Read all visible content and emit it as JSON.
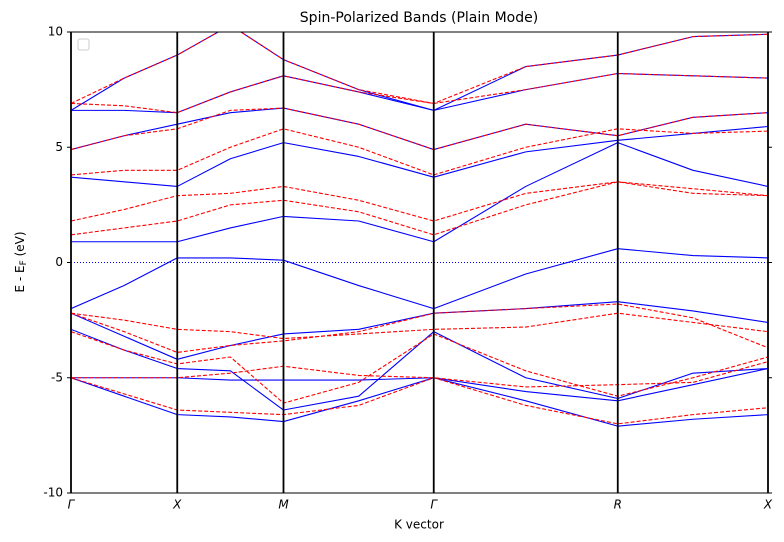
{
  "chart_data": {
    "type": "line",
    "title": "Spin-Polarized Bands (Plain Mode)",
    "xlabel": "K vector",
    "ylabel": {
      "text": "E - E",
      "subscript": "F",
      "suffix": " (eV)"
    },
    "x": [
      0,
      0.25,
      0.5,
      0.75,
      1.0,
      1.354,
      1.707,
      2.14,
      2.573,
      2.927,
      3.28
    ],
    "xlim": [
      0,
      3.28
    ],
    "xticks": [
      {
        "value": 0,
        "label": "Γ"
      },
      {
        "value": 0.5,
        "label": "X"
      },
      {
        "value": 1.0,
        "label": "M"
      },
      {
        "value": 1.707,
        "label": "Γ"
      },
      {
        "value": 2.573,
        "label": "R"
      },
      {
        "value": 3.28,
        "label": "X"
      }
    ],
    "ylim": [
      -10,
      10
    ],
    "yticks": [
      -10,
      -5,
      0,
      5,
      10
    ],
    "fermi_level": 0,
    "fermi_color": "#0000ff",
    "series": [
      {
        "color": "#0000ff",
        "linestyle": "solid",
        "values": [
          -5,
          -5.8,
          -6.6,
          -6.7,
          -6.9,
          -6.0,
          -5,
          -6.0,
          -7.1,
          -6.8,
          -6.6
        ]
      },
      {
        "color": "#0000ff",
        "linestyle": "solid",
        "values": [
          -5,
          -5,
          -5,
          -5.1,
          -5.1,
          -5.1,
          -5,
          -5.6,
          -6.0,
          -5.3,
          -4.6
        ]
      },
      {
        "color": "#0000ff",
        "linestyle": "solid",
        "values": [
          -2.9,
          -3.8,
          -4.6,
          -4.7,
          -6.4,
          -5.8,
          -3.0,
          -5.0,
          -5.9,
          -4.8,
          -4.6
        ]
      },
      {
        "color": "#0000ff",
        "linestyle": "solid",
        "values": [
          -2.2,
          -3.2,
          -4.2,
          -3.6,
          -3.1,
          -2.9,
          -2.2,
          -2.0,
          -1.7,
          -2.1,
          -2.6
        ]
      },
      {
        "color": "#0000ff",
        "linestyle": "solid",
        "values": [
          -2.0,
          -1.0,
          0.2,
          0.2,
          0.1,
          -1.0,
          -2.0,
          -0.5,
          0.6,
          0.3,
          0.2
        ]
      },
      {
        "color": "#0000ff",
        "linestyle": "solid",
        "values": [
          0.9,
          0.9,
          0.9,
          1.5,
          2.0,
          1.8,
          0.9,
          3.3,
          5.2,
          4.0,
          3.3
        ]
      },
      {
        "color": "#0000ff",
        "linestyle": "solid",
        "values": [
          3.7,
          3.5,
          3.3,
          4.5,
          5.2,
          4.6,
          3.7,
          4.8,
          5.3,
          5.6,
          5.9
        ]
      },
      {
        "color": "#0000ff",
        "linestyle": "solid",
        "values": [
          4.9,
          5.5,
          6.0,
          6.5,
          6.7,
          6.0,
          4.9,
          6.0,
          5.5,
          6.3,
          6.5
        ]
      },
      {
        "color": "#0000ff",
        "linestyle": "solid",
        "values": [
          6.6,
          6.6,
          6.5,
          7.4,
          8.1,
          7.4,
          6.6,
          7.5,
          8.2,
          8.1,
          8.0
        ]
      },
      {
        "color": "#0000ff",
        "linestyle": "solid",
        "values": [
          6.6,
          8.0,
          9.0,
          10.3,
          8.8,
          7.5,
          6.6,
          8.5,
          9.0,
          9.8,
          9.9
        ]
      },
      {
        "color": "#ff0000",
        "linestyle": "dashed",
        "values": [
          -5,
          -5.7,
          -6.4,
          -6.5,
          -6.6,
          -6.2,
          -5,
          -6.2,
          -7.0,
          -6.6,
          -6.3
        ]
      },
      {
        "color": "#ff0000",
        "linestyle": "dashed",
        "values": [
          -5,
          -5,
          -5,
          -4.8,
          -4.5,
          -4.9,
          -5,
          -5.4,
          -5.3,
          -5.2,
          -4.3
        ]
      },
      {
        "color": "#ff0000",
        "linestyle": "dashed",
        "values": [
          -3.0,
          -3.8,
          -4.4,
          -4.1,
          -6.1,
          -5.2,
          -3.1,
          -4.7,
          -5.8,
          -5.0,
          -4.1
        ]
      },
      {
        "color": "#ff0000",
        "linestyle": "dashed",
        "values": [
          -2.2,
          -3.0,
          -3.9,
          -3.6,
          -3.4,
          -3.0,
          -2.2,
          -2.0,
          -1.8,
          -2.4,
          -3.7
        ]
      },
      {
        "color": "#ff0000",
        "linestyle": "dashed",
        "values": [
          -2.2,
          -2.5,
          -2.9,
          -3.0,
          -3.3,
          -3.1,
          -2.9,
          -2.8,
          -2.2,
          -2.6,
          -3.0
        ]
      },
      {
        "color": "#ff0000",
        "linestyle": "dashed",
        "values": [
          1.2,
          1.5,
          1.8,
          2.5,
          2.7,
          2.2,
          1.2,
          2.5,
          3.5,
          3.0,
          2.9
        ]
      },
      {
        "color": "#ff0000",
        "linestyle": "dashed",
        "values": [
          1.8,
          2.3,
          2.9,
          3.0,
          3.3,
          2.7,
          1.8,
          3.0,
          3.5,
          3.2,
          2.9
        ]
      },
      {
        "color": "#ff0000",
        "linestyle": "dashed",
        "values": [
          3.8,
          4.0,
          4.0,
          5.0,
          5.8,
          5.0,
          3.8,
          5.0,
          5.8,
          5.6,
          5.7
        ]
      },
      {
        "color": "#ff0000",
        "linestyle": "dashed",
        "values": [
          4.9,
          5.5,
          5.8,
          6.6,
          6.7,
          6.0,
          4.9,
          6.0,
          5.5,
          6.3,
          6.5
        ]
      },
      {
        "color": "#ff0000",
        "linestyle": "dashed",
        "values": [
          6.9,
          6.8,
          6.5,
          7.4,
          8.1,
          7.4,
          6.9,
          7.5,
          8.2,
          8.1,
          8.0
        ]
      },
      {
        "color": "#ff0000",
        "linestyle": "dashed",
        "values": [
          6.9,
          8.0,
          9.0,
          10.3,
          8.8,
          7.5,
          6.9,
          8.5,
          9.0,
          9.8,
          9.9
        ]
      }
    ]
  }
}
